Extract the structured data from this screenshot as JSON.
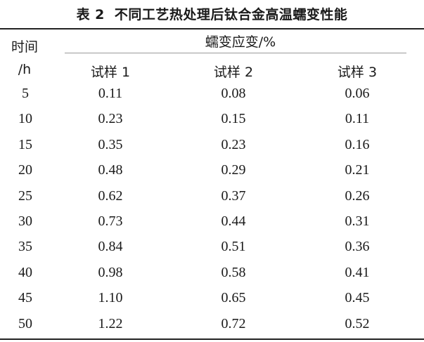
{
  "caption": {
    "label": "表 2",
    "title": "不同工艺热处理后钛合金高温蠕变性能"
  },
  "header": {
    "time_label": "时间",
    "time_unit": "/h",
    "group_label": "蠕变应变/%",
    "samples": [
      "试样 1",
      "试样 2",
      "试样 3"
    ]
  },
  "rows": [
    {
      "t": "5",
      "s1": "0.11",
      "s2": "0.08",
      "s3": "0.06"
    },
    {
      "t": "10",
      "s1": "0.23",
      "s2": "0.15",
      "s3": "0.11"
    },
    {
      "t": "15",
      "s1": "0.35",
      "s2": "0.23",
      "s3": "0.16"
    },
    {
      "t": "20",
      "s1": "0.48",
      "s2": "0.29",
      "s3": "0.21"
    },
    {
      "t": "25",
      "s1": "0.62",
      "s2": "0.37",
      "s3": "0.26"
    },
    {
      "t": "30",
      "s1": "0.73",
      "s2": "0.44",
      "s3": "0.31"
    },
    {
      "t": "35",
      "s1": "0.84",
      "s2": "0.51",
      "s3": "0.36"
    },
    {
      "t": "40",
      "s1": "0.98",
      "s2": "0.58",
      "s3": "0.41"
    },
    {
      "t": "45",
      "s1": "1.10",
      "s2": "0.65",
      "s3": "0.45"
    },
    {
      "t": "50",
      "s1": "1.22",
      "s2": "0.72",
      "s3": "0.52"
    }
  ]
}
